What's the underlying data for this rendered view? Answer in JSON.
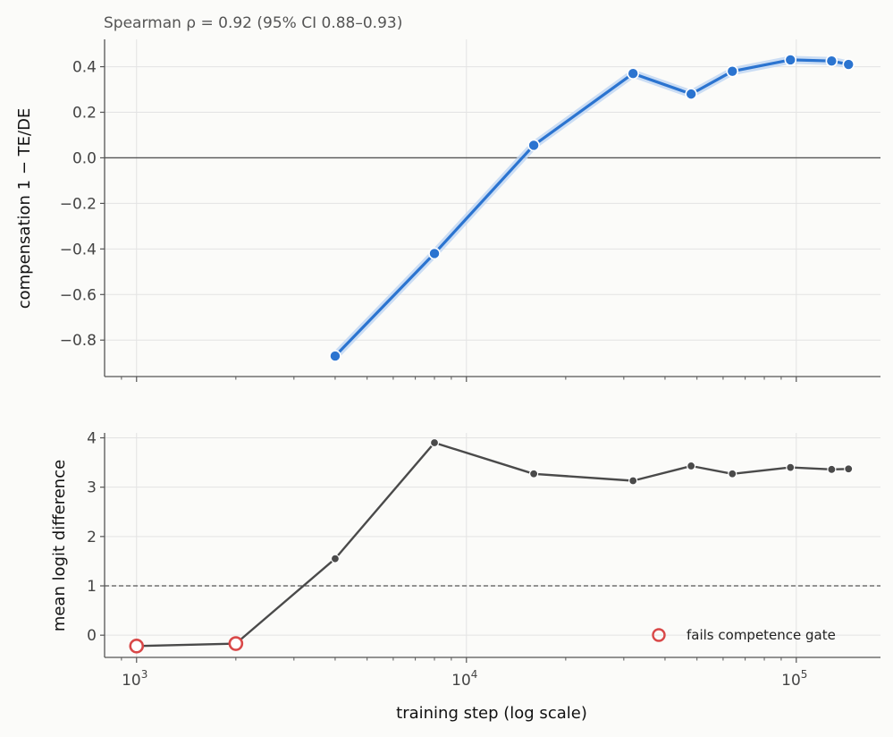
{
  "chart_data": [
    {
      "type": "line",
      "subtitle": "Spearman ρ = 0.92 (95% CI 0.88–0.93)",
      "ylabel": "compensation 1 − TE/DE",
      "xscale": "log",
      "xlim": [
        800,
        180000
      ],
      "ylim": [
        -0.96,
        0.52
      ],
      "yticks": [
        "−0.8",
        "−0.6",
        "−0.4",
        "−0.2",
        "0.0",
        "0.2",
        "0.4"
      ],
      "ytick_values": [
        -0.8,
        -0.6,
        -0.4,
        -0.2,
        0.0,
        0.2,
        0.4
      ],
      "reference_line": 0.0,
      "line_color": "#2b74d0",
      "series": [
        {
          "x": [
            4000,
            8000,
            16000,
            32000,
            48000,
            64000,
            96000,
            128000,
            144000
          ],
          "y": [
            -0.87,
            -0.42,
            0.055,
            0.37,
            0.28,
            0.38,
            0.43,
            0.425,
            0.41
          ]
        }
      ],
      "grid": true
    },
    {
      "type": "line",
      "xlabel": "training step (log scale)",
      "ylabel": "mean logit difference",
      "xscale": "log",
      "xlim": [
        800,
        180000
      ],
      "ylim": [
        -0.45,
        4.1
      ],
      "xticks": [
        {
          "value": 1000,
          "base": "10",
          "exp": "3"
        },
        {
          "value": 10000,
          "base": "10",
          "exp": "4"
        },
        {
          "value": 100000,
          "base": "10",
          "exp": "5"
        }
      ],
      "yticks": [
        "0",
        "1",
        "2",
        "3",
        "4"
      ],
      "ytick_values": [
        0,
        1,
        2,
        3,
        4
      ],
      "threshold_line": 1.0,
      "line_color": "#4a4a4a",
      "fail_color": "#d94848",
      "series": [
        {
          "x": [
            1000,
            2000,
            4000,
            8000,
            16000,
            32000,
            48000,
            64000,
            96000,
            128000,
            144000
          ],
          "y": [
            -0.22,
            -0.17,
            1.55,
            3.9,
            3.27,
            3.13,
            3.43,
            3.27,
            3.4,
            3.36,
            3.37
          ],
          "fails_gate": [
            true,
            true,
            false,
            false,
            false,
            false,
            false,
            false,
            false,
            false,
            false
          ]
        }
      ],
      "legend": {
        "label": "fails competence gate",
        "position": "lower-right"
      },
      "grid": true
    }
  ]
}
